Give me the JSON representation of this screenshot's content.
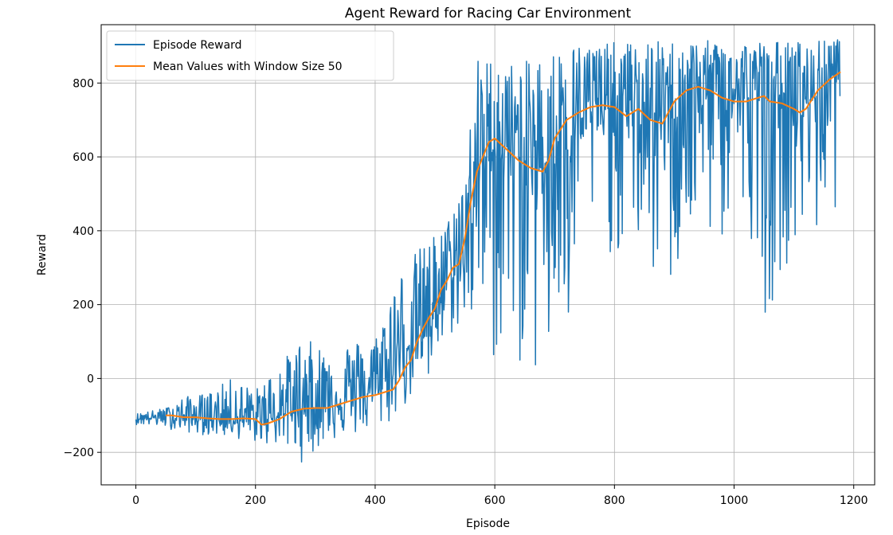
{
  "chart_data": {
    "type": "line",
    "title": "Agent Reward for Racing Car Environment",
    "xlabel": "Episode",
    "ylabel": "Reward",
    "xlim": [
      -58,
      1235
    ],
    "ylim": [
      -288,
      958
    ],
    "xticks": [
      0,
      200,
      400,
      600,
      800,
      1000,
      1200
    ],
    "yticks": [
      -200,
      0,
      200,
      400,
      600,
      800
    ],
    "grid": true,
    "legend_position": "upper-left",
    "series": [
      {
        "name": "Episode Reward",
        "color": "#1f77b4",
        "n_points": 1178,
        "envelope": [
          {
            "x": 0,
            "lo": -125,
            "mid": -110,
            "hi": -95
          },
          {
            "x": 50,
            "lo": -135,
            "mid": -105,
            "hi": -80
          },
          {
            "x": 80,
            "lo": -145,
            "mid": -110,
            "hi": -50
          },
          {
            "x": 120,
            "lo": -155,
            "mid": -112,
            "hi": -40
          },
          {
            "x": 160,
            "lo": -160,
            "mid": -112,
            "hi": 0
          },
          {
            "x": 200,
            "lo": -175,
            "mid": -120,
            "hi": -30
          },
          {
            "x": 240,
            "lo": -185,
            "mid": -100,
            "hi": 40
          },
          {
            "x": 280,
            "lo": -230,
            "mid": -82,
            "hi": 110
          },
          {
            "x": 320,
            "lo": -170,
            "mid": -75,
            "hi": 80
          },
          {
            "x": 360,
            "lo": -160,
            "mid": -55,
            "hi": 100
          },
          {
            "x": 400,
            "lo": -150,
            "mid": -35,
            "hi": 110
          },
          {
            "x": 430,
            "lo": -120,
            "mid": 20,
            "hi": 260
          },
          {
            "x": 460,
            "lo": -60,
            "mid": 100,
            "hi": 330
          },
          {
            "x": 490,
            "lo": -50,
            "mid": 160,
            "hi": 380
          },
          {
            "x": 520,
            "lo": 100,
            "mid": 250,
            "hi": 420
          },
          {
            "x": 550,
            "lo": 150,
            "mid": 320,
            "hi": 570
          },
          {
            "x": 570,
            "lo": 100,
            "mid": 520,
            "hi": 870
          },
          {
            "x": 600,
            "lo": 20,
            "mid": 630,
            "hi": 870
          },
          {
            "x": 640,
            "lo": 30,
            "mid": 600,
            "hi": 850
          },
          {
            "x": 680,
            "lo": -30,
            "mid": 570,
            "hi": 880
          },
          {
            "x": 720,
            "lo": 30,
            "mid": 680,
            "hi": 905
          },
          {
            "x": 760,
            "lo": 400,
            "mid": 720,
            "hi": 910
          },
          {
            "x": 800,
            "lo": 320,
            "mid": 735,
            "hi": 910
          },
          {
            "x": 840,
            "lo": 350,
            "mid": 715,
            "hi": 910
          },
          {
            "x": 880,
            "lo": 180,
            "mid": 695,
            "hi": 915
          },
          {
            "x": 920,
            "lo": 310,
            "mid": 760,
            "hi": 915
          },
          {
            "x": 960,
            "lo": 360,
            "mid": 785,
            "hi": 915
          },
          {
            "x": 1000,
            "lo": 350,
            "mid": 760,
            "hi": 915
          },
          {
            "x": 1040,
            "lo": 380,
            "mid": 760,
            "hi": 915
          },
          {
            "x": 1055,
            "lo": 120,
            "mid": 775,
            "hi": 915
          },
          {
            "x": 1080,
            "lo": 300,
            "mid": 745,
            "hi": 915
          },
          {
            "x": 1100,
            "lo": 330,
            "mid": 725,
            "hi": 915
          },
          {
            "x": 1140,
            "lo": 380,
            "mid": 770,
            "hi": 915
          },
          {
            "x": 1178,
            "lo": 480,
            "mid": 850,
            "hi": 920
          }
        ]
      },
      {
        "name": "Mean Values with Window Size 50",
        "color": "#ff7f0e",
        "x": [
          50,
          60,
          80,
          100,
          120,
          140,
          160,
          180,
          200,
          210,
          220,
          240,
          260,
          280,
          300,
          320,
          340,
          360,
          380,
          400,
          420,
          430,
          440,
          450,
          460,
          470,
          480,
          490,
          500,
          510,
          520,
          530,
          540,
          550,
          560,
          570,
          580,
          590,
          600,
          610,
          620,
          640,
          660,
          680,
          690,
          700,
          720,
          740,
          760,
          780,
          800,
          820,
          840,
          860,
          880,
          890,
          900,
          920,
          940,
          960,
          980,
          1000,
          1020,
          1040,
          1050,
          1060,
          1080,
          1100,
          1110,
          1120,
          1140,
          1160,
          1178
        ],
        "y": [
          -100,
          -100,
          -105,
          -105,
          -108,
          -110,
          -110,
          -108,
          -110,
          -125,
          -122,
          -110,
          -90,
          -82,
          -80,
          -80,
          -70,
          -60,
          -50,
          -45,
          -35,
          -30,
          -5,
          30,
          50,
          100,
          135,
          165,
          190,
          240,
          265,
          300,
          310,
          380,
          480,
          560,
          600,
          640,
          650,
          635,
          620,
          590,
          570,
          560,
          590,
          650,
          700,
          720,
          735,
          740,
          735,
          710,
          730,
          700,
          690,
          720,
          750,
          780,
          790,
          780,
          760,
          750,
          750,
          760,
          765,
          750,
          745,
          730,
          720,
          730,
          780,
          810,
          830
        ]
      }
    ]
  }
}
